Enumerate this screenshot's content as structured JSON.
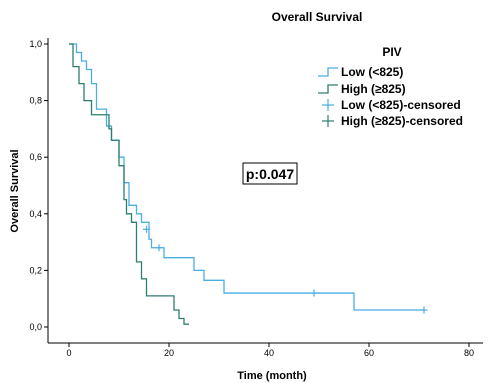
{
  "chart_data": {
    "type": "line",
    "subtype": "kaplan-meier",
    "title": "Overall Survival",
    "xlabel": "Time (month)",
    "ylabel": "Overall Survival",
    "xlim": [
      0,
      80
    ],
    "ylim": [
      0,
      1
    ],
    "x_ticks": [
      0,
      20,
      40,
      60,
      80
    ],
    "y_ticks": [
      0,
      0.2,
      0.4,
      0.6,
      0.8,
      1.0
    ],
    "x_tick_labels": [
      "0",
      "20",
      "40",
      "60",
      "80"
    ],
    "y_tick_labels": [
      "0,0",
      "0,2",
      "0,4",
      "0,6",
      "0,8",
      "1,0"
    ],
    "grid": false,
    "legend": {
      "title": "PIV",
      "placement": "top-right",
      "entries": [
        {
          "label": "Low (<825)",
          "kind": "step",
          "color": "#4aaee4"
        },
        {
          "label": "High (≥825)",
          "kind": "step",
          "color": "#2f7c70"
        },
        {
          "label": "Low (<825)-censored",
          "kind": "censor",
          "color": "#4aaee4"
        },
        {
          "label": "High (≥825)-censored",
          "kind": "censor",
          "color": "#2f7c70"
        }
      ]
    },
    "annotation": "p:0.047",
    "series": [
      {
        "name": "Low (<825)",
        "color": "#4aaee4",
        "steps": [
          [
            0,
            1.0
          ],
          [
            1.5,
            0.97
          ],
          [
            2.5,
            0.94
          ],
          [
            3.5,
            0.91
          ],
          [
            4.5,
            0.86
          ],
          [
            5.5,
            0.77
          ],
          [
            7.5,
            0.71
          ],
          [
            8.5,
            0.66
          ],
          [
            10,
            0.6
          ],
          [
            11,
            0.51
          ],
          [
            12,
            0.43
          ],
          [
            13.5,
            0.4
          ],
          [
            14.5,
            0.37
          ],
          [
            16,
            0.31
          ],
          [
            16.5,
            0.28
          ],
          [
            19,
            0.245
          ],
          [
            25,
            0.2
          ],
          [
            27,
            0.165
          ],
          [
            31,
            0.12
          ],
          [
            57,
            0.06
          ],
          [
            71,
            0.06
          ]
        ],
        "censored": [
          [
            15.5,
            0.345
          ],
          [
            18,
            0.28
          ],
          [
            49,
            0.12
          ],
          [
            71,
            0.06
          ]
        ]
      },
      {
        "name": "High (≥825)",
        "color": "#2f7c70",
        "steps": [
          [
            0,
            1.0
          ],
          [
            0.8,
            0.92
          ],
          [
            2,
            0.86
          ],
          [
            3,
            0.8
          ],
          [
            4.5,
            0.75
          ],
          [
            8,
            0.7
          ],
          [
            8.5,
            0.66
          ],
          [
            10,
            0.57
          ],
          [
            11,
            0.45
          ],
          [
            11.5,
            0.4
          ],
          [
            12.5,
            0.37
          ],
          [
            13.5,
            0.23
          ],
          [
            14.5,
            0.17
          ],
          [
            15.5,
            0.11
          ],
          [
            21,
            0.06
          ],
          [
            22,
            0.03
          ],
          [
            23,
            0.01
          ],
          [
            24,
            0.01
          ]
        ],
        "censored": []
      }
    ]
  }
}
